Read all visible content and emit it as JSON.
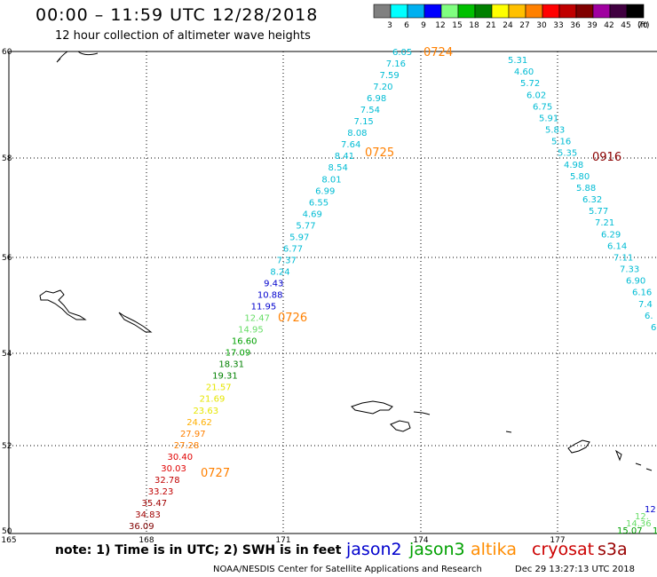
{
  "header": {
    "title": "00:00 – 11:59 UTC 12/28/2018",
    "subtitle": "12 hour collection of altimeter wave heights"
  },
  "colorbar": {
    "labels": [
      "3",
      "6",
      "9",
      "12",
      "15",
      "18",
      "21",
      "24",
      "27",
      "30",
      "33",
      "36",
      "39",
      "42",
      "45",
      "70"
    ],
    "unit": "(ft)",
    "colors": [
      "#808080",
      "#00ffff",
      "#00b0f0",
      "#0000ff",
      "#80ff80",
      "#00c000",
      "#008000",
      "#ffff00",
      "#ffc000",
      "#ff8000",
      "#ff0000",
      "#c00000",
      "#800000",
      "#a000a0",
      "#400040",
      "#000000"
    ]
  },
  "axes": {
    "lat_labels": [
      "60",
      "58",
      "56",
      "54",
      "52",
      "50"
    ],
    "lon_labels": [
      "165",
      "168",
      "171",
      "174",
      "177"
    ]
  },
  "tracks": {
    "time_labels": [
      {
        "text": "0724",
        "color": "#ff8000"
      },
      {
        "text": "0725",
        "color": "#ff8000"
      },
      {
        "text": "0726",
        "color": "#ff8000"
      },
      {
        "text": "0727",
        "color": "#ff8000"
      },
      {
        "text": "0916",
        "color": "#8b0000"
      }
    ],
    "track_a": [
      {
        "v": "6.05",
        "c": "#00bcd4"
      },
      {
        "v": "7.16",
        "c": "#00bcd4"
      },
      {
        "v": "7.59",
        "c": "#00bcd4"
      },
      {
        "v": "7.20",
        "c": "#00bcd4"
      },
      {
        "v": "6.98",
        "c": "#00bcd4"
      },
      {
        "v": "7.54",
        "c": "#00bcd4"
      },
      {
        "v": "7.15",
        "c": "#00bcd4"
      },
      {
        "v": "8.08",
        "c": "#00bcd4"
      },
      {
        "v": "7.64",
        "c": "#00bcd4"
      },
      {
        "v": "8.41",
        "c": "#00bcd4"
      },
      {
        "v": "8.54",
        "c": "#00bcd4"
      },
      {
        "v": "8.01",
        "c": "#00bcd4"
      },
      {
        "v": "6.99",
        "c": "#00bcd4"
      },
      {
        "v": "6.55",
        "c": "#00bcd4"
      },
      {
        "v": "4.69",
        "c": "#00bcd4"
      },
      {
        "v": "5.77",
        "c": "#00bcd4"
      },
      {
        "v": "5.97",
        "c": "#00bcd4"
      },
      {
        "v": "6.77",
        "c": "#00bcd4"
      },
      {
        "v": "7.37",
        "c": "#00bcd4"
      },
      {
        "v": "8.24",
        "c": "#00bcd4"
      },
      {
        "v": "9.43",
        "c": "#0000cd"
      },
      {
        "v": "10.88",
        "c": "#0000cd"
      },
      {
        "v": "11.95",
        "c": "#0000cd"
      },
      {
        "v": "12.47",
        "c": "#66dd66"
      },
      {
        "v": "14.95",
        "c": "#66dd66"
      },
      {
        "v": "16.60",
        "c": "#00a000"
      },
      {
        "v": "17.09",
        "c": "#00a000"
      },
      {
        "v": "18.31",
        "c": "#008000"
      },
      {
        "v": "19.31",
        "c": "#008000"
      },
      {
        "v": "21.57",
        "c": "#e6e600"
      },
      {
        "v": "21.69",
        "c": "#e6e600"
      },
      {
        "v": "23.63",
        "c": "#e6e600"
      },
      {
        "v": "24.62",
        "c": "#ffb000"
      },
      {
        "v": "27.97",
        "c": "#ff8000"
      },
      {
        "v": "27.28",
        "c": "#ff8000"
      },
      {
        "v": "30.40",
        "c": "#e00000"
      },
      {
        "v": "30.03",
        "c": "#e00000"
      },
      {
        "v": "32.78",
        "c": "#c00000"
      },
      {
        "v": "33.23",
        "c": "#c00000"
      },
      {
        "v": "35.47",
        "c": "#a00000"
      },
      {
        "v": "34.83",
        "c": "#a00000"
      },
      {
        "v": "36.09",
        "c": "#800000"
      }
    ],
    "track_b": [
      {
        "v": "5.31",
        "c": "#00bcd4"
      },
      {
        "v": "4.60",
        "c": "#00bcd4"
      },
      {
        "v": "5.72",
        "c": "#00bcd4"
      },
      {
        "v": "6.02",
        "c": "#00bcd4"
      },
      {
        "v": "6.75",
        "c": "#00bcd4"
      },
      {
        "v": "5.91",
        "c": "#00bcd4"
      },
      {
        "v": "5.83",
        "c": "#00bcd4"
      },
      {
        "v": "5.16",
        "c": "#00bcd4"
      },
      {
        "v": "5.35",
        "c": "#00bcd4"
      },
      {
        "v": "4.98",
        "c": "#00bcd4"
      },
      {
        "v": "5.80",
        "c": "#00bcd4"
      },
      {
        "v": "5.88",
        "c": "#00bcd4"
      },
      {
        "v": "6.32",
        "c": "#00bcd4"
      },
      {
        "v": "5.77",
        "c": "#00bcd4"
      },
      {
        "v": "7.21",
        "c": "#00bcd4"
      },
      {
        "v": "6.29",
        "c": "#00bcd4"
      },
      {
        "v": "6.14",
        "c": "#00bcd4"
      },
      {
        "v": "7.11",
        "c": "#00bcd4"
      },
      {
        "v": "7.33",
        "c": "#00bcd4"
      },
      {
        "v": "6.90",
        "c": "#00bcd4"
      },
      {
        "v": "6.16",
        "c": "#00bcd4"
      },
      {
        "v": "7.4",
        "c": "#00bcd4"
      },
      {
        "v": "6.",
        "c": "#00bcd4"
      },
      {
        "v": "6",
        "c": "#00bcd4"
      }
    ],
    "track_c": [
      {
        "v": "12",
        "c": "#0000cd"
      },
      {
        "v": "12.",
        "c": "#66dd66"
      },
      {
        "v": "14.36",
        "c": "#66dd66"
      },
      {
        "v": "15.07",
        "c": "#00a000"
      },
      {
        "v": "1",
        "c": "#00a000"
      }
    ]
  },
  "footer": {
    "note": "note:  1) Time is in UTC;  2) SWH is in feet",
    "satellites": [
      {
        "name": "jason2",
        "color": "#0000cd"
      },
      {
        "name": "jason3",
        "color": "#00a000"
      },
      {
        "name": "altika",
        "color": "#ff8c00"
      },
      {
        "name": "cryosat",
        "color": "#cc0000"
      },
      {
        "name": "s3a",
        "color": "#990000"
      }
    ],
    "credit": "NOAA/NESDIS Center for Satellite Applications and Research",
    "timestamp": "Dec 29 13:27:13 UTC 2018"
  }
}
